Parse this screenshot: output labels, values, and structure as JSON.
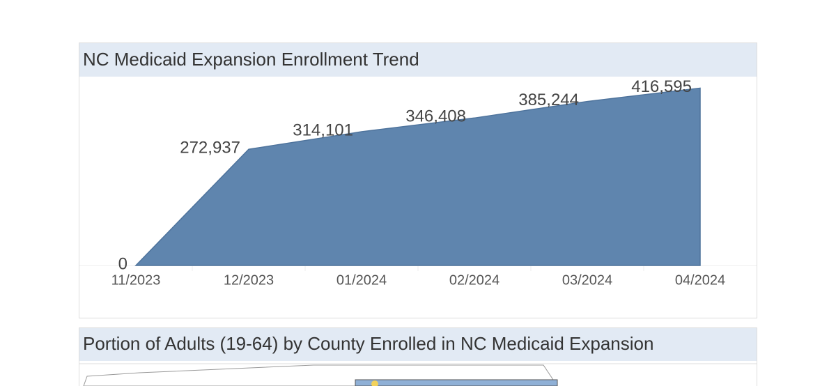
{
  "chart_data": {
    "type": "area",
    "title": "NC Medicaid Expansion Enrollment Trend",
    "categories": [
      "11/2023",
      "12/2023",
      "01/2024",
      "02/2024",
      "03/2024",
      "04/2024"
    ],
    "values": [
      0,
      272937,
      314101,
      346408,
      385244,
      416595
    ],
    "value_labels": [
      "0",
      "272,937",
      "314,101",
      "346,408",
      "385,244",
      "416,595"
    ],
    "color": "#5f85ae",
    "ylim": [
      0,
      450000
    ]
  },
  "map_panel": {
    "title": "Portion of Adults (19-64) by County Enrolled in NC Medicaid Expansion"
  }
}
